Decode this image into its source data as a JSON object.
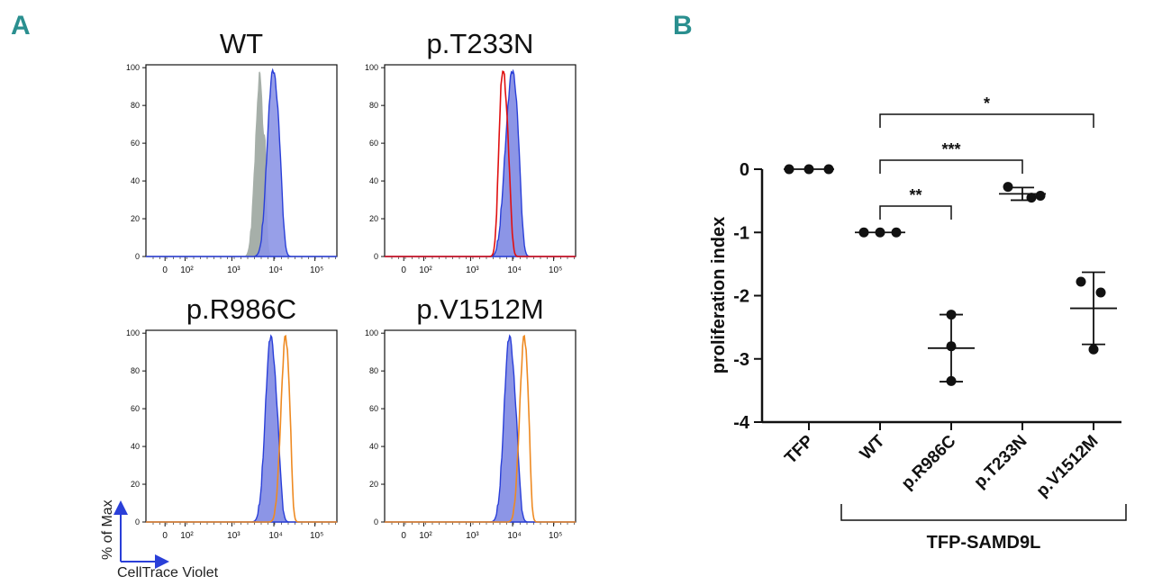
{
  "panels": {
    "a": "A",
    "b": "B"
  },
  "colors": {
    "blue_fill": "#8c95e6",
    "blue_line": "#2a3fd8",
    "gray_fill": "#a6afa9",
    "red_line": "#e01010",
    "orange_line": "#ee8a22",
    "accent": "#2a8f8f"
  },
  "histograms": {
    "y_axis_label": "% of Max",
    "x_axis_label": "CellTrace Violet",
    "y_ticks": [
      "0",
      "20",
      "40",
      "60",
      "80",
      "100"
    ],
    "x_ticks": [
      "0",
      "10²",
      "10³",
      "10⁴",
      "10⁵"
    ],
    "plots": [
      {
        "title": "WT",
        "overlay": "gray-filled"
      },
      {
        "title": "p.T233N",
        "overlay": "red-line"
      },
      {
        "title": "p.R986C",
        "overlay": "orange-line"
      },
      {
        "title": "p.V1512M",
        "overlay": "orange-line"
      }
    ]
  },
  "chart_data": {
    "type": "scatter",
    "ylabel": "proliferation index",
    "ylim": [
      -4,
      0
    ],
    "yticks": [
      "0",
      "-1",
      "-2",
      "-3",
      "-4"
    ],
    "categories": [
      "TFP",
      "WT",
      "p.R986C",
      "p.T233N",
      "p.V1512M"
    ],
    "group_label": "TFP-SAMD9L",
    "points": [
      [
        0,
        0,
        0
      ],
      [
        -1,
        -1,
        -1
      ],
      [
        -2.3,
        -2.8,
        -3.35
      ],
      [
        -0.28,
        -0.45,
        -0.42
      ],
      [
        -1.78,
        -1.95,
        -2.85
      ]
    ],
    "mean": [
      0,
      -1,
      -2.83,
      -0.39,
      -2.2
    ],
    "sd": [
      0,
      0,
      0.53,
      0.1,
      0.57
    ],
    "comparisons": [
      {
        "from": "WT",
        "to": "p.R986C",
        "label": "**"
      },
      {
        "from": "WT",
        "to": "p.T233N",
        "label": "***"
      },
      {
        "from": "WT",
        "to": "p.V1512M",
        "label": "*"
      }
    ]
  }
}
